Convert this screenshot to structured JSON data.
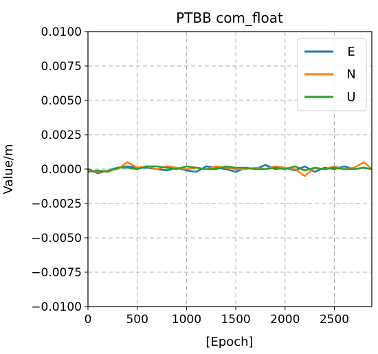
{
  "chart_data": {
    "type": "line",
    "title": "PTBB com_float",
    "xlabel": "[Epoch]",
    "ylabel": "Value/m",
    "xlim": [
      0,
      2880
    ],
    "ylim": [
      -0.01,
      0.01
    ],
    "xticks": [
      0,
      500,
      1000,
      1500,
      2000,
      2500
    ],
    "xtick_labels": [
      "0",
      "500",
      "1000",
      "1500",
      "2000",
      "2500"
    ],
    "yticks": [
      0.01,
      0.0075,
      0.005,
      0.0025,
      0,
      -0.0025,
      -0.005,
      -0.0075,
      -0.01
    ],
    "ytick_labels": [
      "0.0100",
      "0.0075",
      "0.0050",
      "0.0025",
      "0.0000",
      "−0.0025",
      "−0.0050",
      "−0.0075",
      "−0.0100"
    ],
    "grid": true,
    "legend_position": "top-right",
    "series": [
      {
        "name": "E",
        "color": "#1f77b4",
        "x": [
          0,
          100,
          200,
          300,
          400,
          500,
          600,
          700,
          800,
          900,
          1000,
          1100,
          1200,
          1300,
          1400,
          1500,
          1600,
          1700,
          1800,
          1900,
          2000,
          2100,
          2200,
          2300,
          2400,
          2500,
          2600,
          2700,
          2800,
          2880
        ],
        "values": [
          0.0,
          -0.0003,
          -0.0001,
          0.0001,
          0.0002,
          0.0001,
          0.0001,
          0.0,
          -0.0001,
          0.0001,
          -0.0001,
          -0.0002,
          0.0002,
          0.0001,
          0.0,
          -0.0002,
          0.0001,
          0.0,
          0.0003,
          0.0,
          0.0001,
          -0.0001,
          0.0002,
          -0.0002,
          0.0001,
          0.0,
          0.0002,
          0.0,
          0.0001,
          0.0
        ]
      },
      {
        "name": "N",
        "color": "#ff7f0e",
        "x": [
          0,
          100,
          200,
          300,
          400,
          500,
          600,
          700,
          800,
          900,
          1000,
          1100,
          1200,
          1300,
          1400,
          1500,
          1600,
          1700,
          1800,
          1900,
          2000,
          2100,
          2200,
          2300,
          2400,
          2500,
          2600,
          2700,
          2800,
          2880
        ],
        "values": [
          -0.0001,
          -0.0002,
          -0.0001,
          0.0,
          0.0005,
          0.0001,
          0.0002,
          0.0,
          0.0002,
          0.0001,
          0.0,
          0.0001,
          0.0,
          0.0002,
          0.0001,
          0.0,
          0.0,
          0.0001,
          0.0,
          0.0002,
          0.0001,
          0.0,
          -0.0005,
          0.0001,
          0.0,
          0.0002,
          0.0,
          0.0001,
          0.0005,
          0.0
        ]
      },
      {
        "name": "U",
        "color": "#2ca02c",
        "x": [
          0,
          100,
          200,
          300,
          400,
          500,
          600,
          700,
          800,
          900,
          1000,
          1100,
          1200,
          1300,
          1400,
          1500,
          1600,
          1700,
          1800,
          1900,
          2000,
          2100,
          2200,
          2300,
          2400,
          2500,
          2600,
          2700,
          2800,
          2880
        ],
        "values": [
          -0.0002,
          -0.0001,
          -0.0002,
          0.0001,
          0.0001,
          0.0,
          0.0002,
          0.0002,
          0.0001,
          0.0,
          0.0002,
          0.0001,
          0.0,
          0.0,
          0.0002,
          0.0001,
          0.0001,
          0.0,
          0.0,
          0.0001,
          0.0,
          0.0002,
          -0.0001,
          0.0001,
          0.0,
          0.0001,
          0.0,
          0.0,
          0.0001,
          0.0
        ]
      }
    ]
  }
}
